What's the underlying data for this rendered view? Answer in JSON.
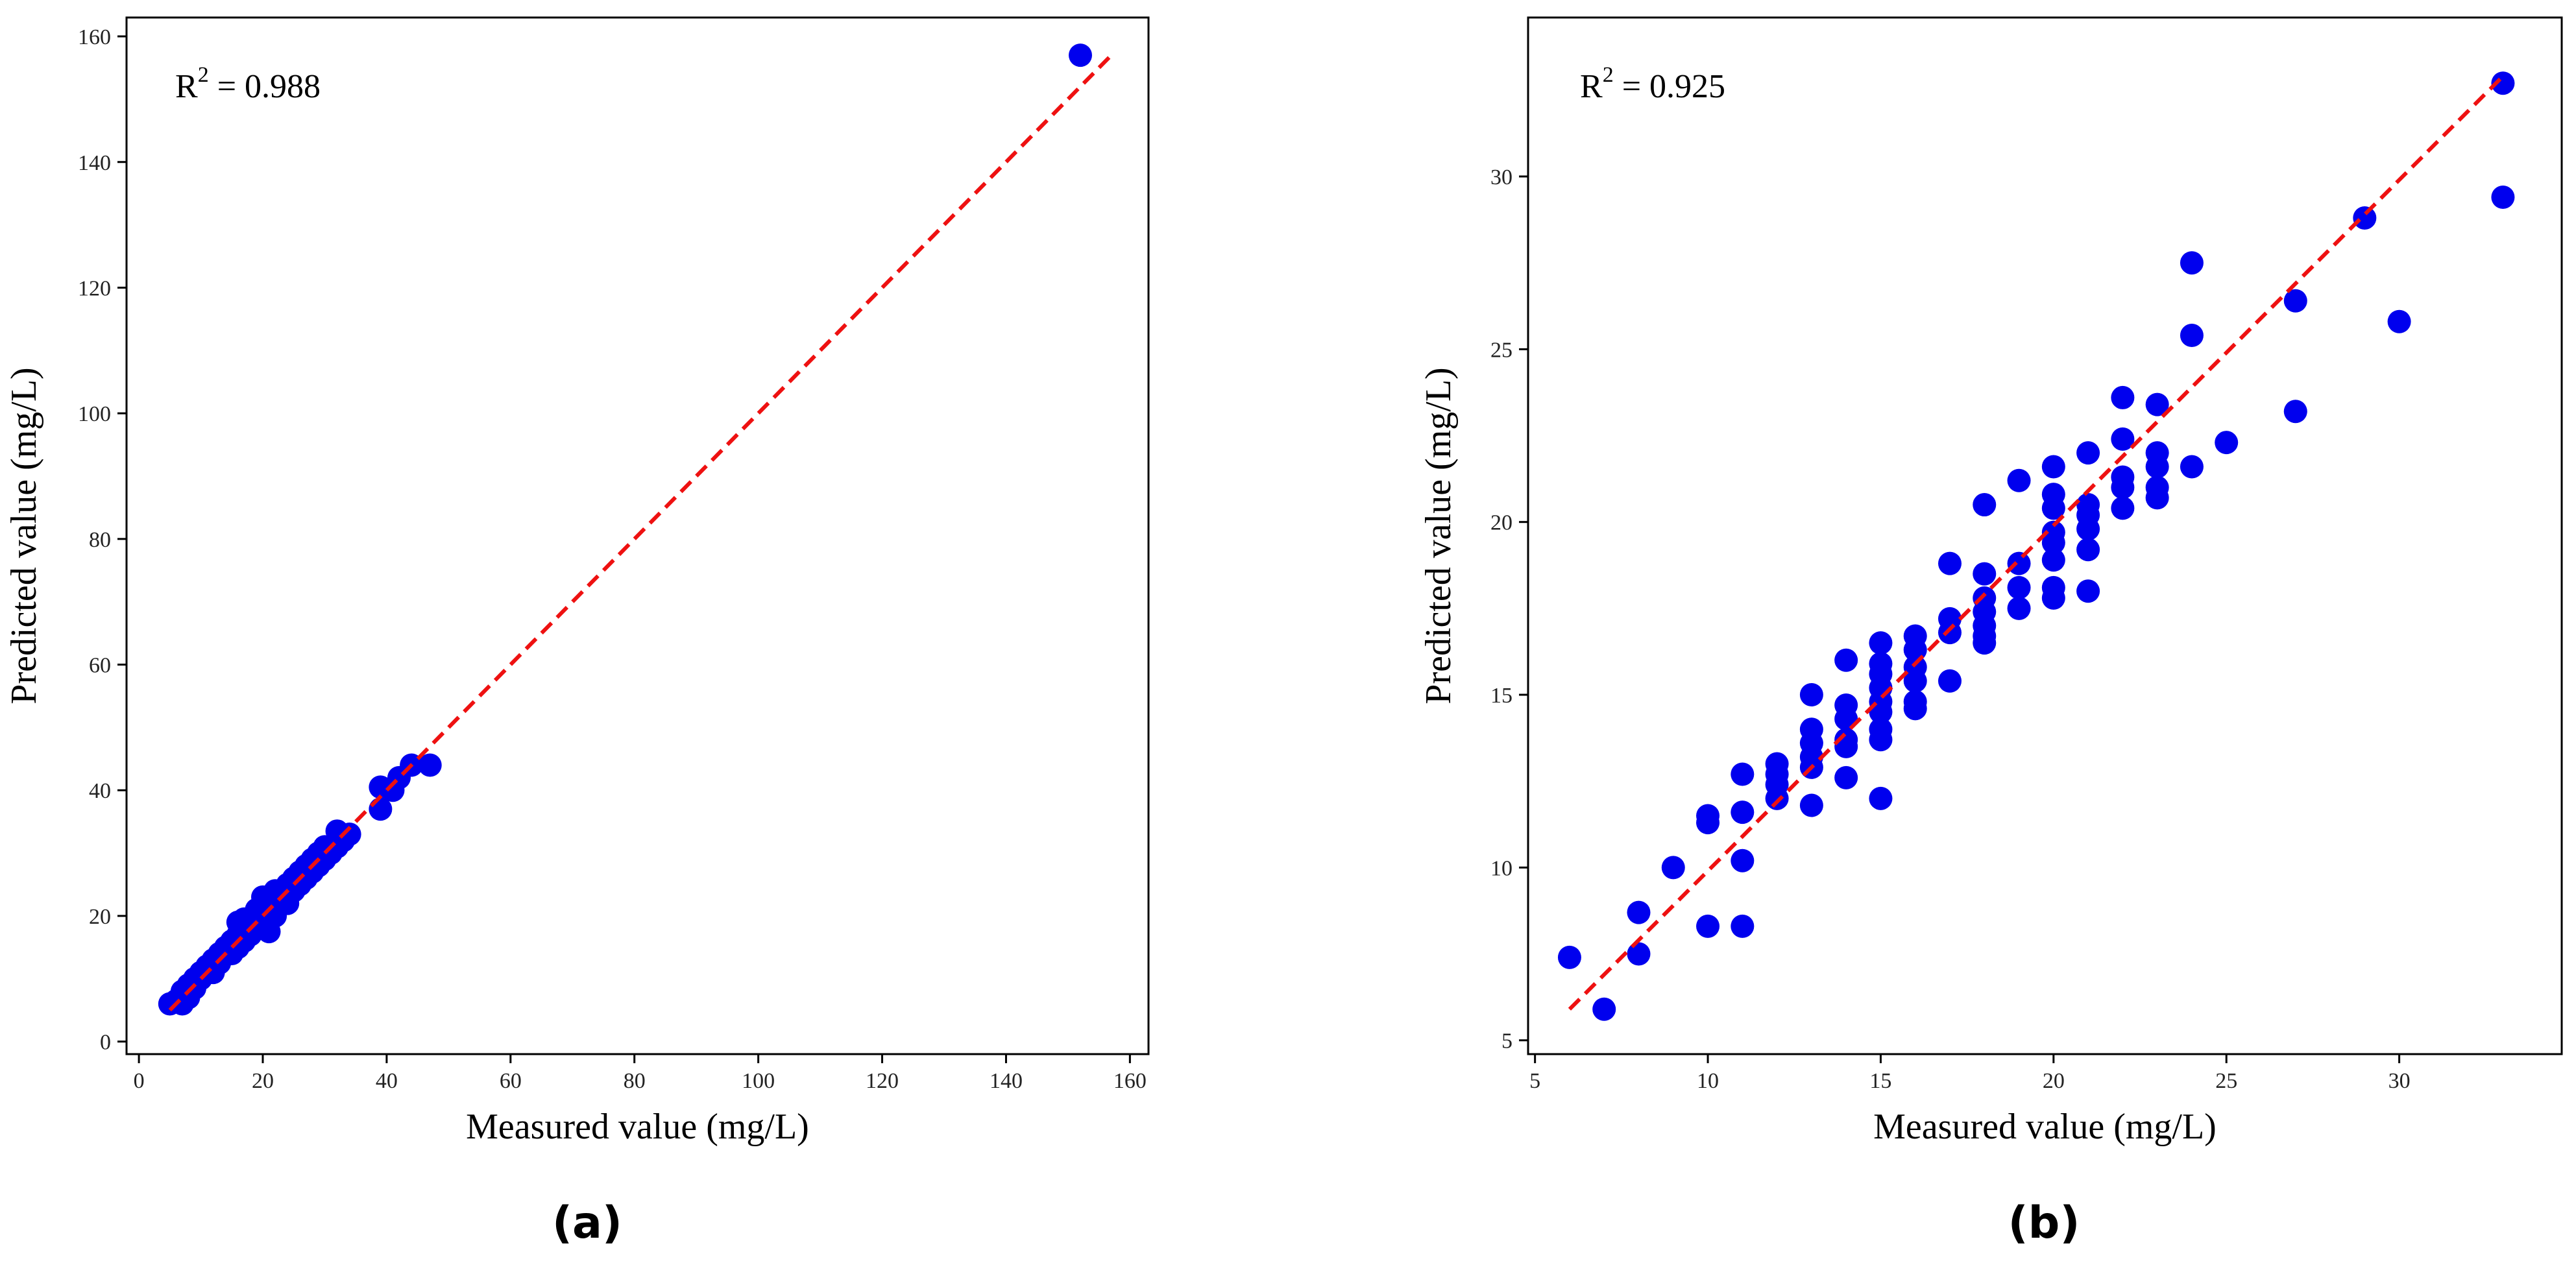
{
  "chart_data": [
    {
      "type": "scatter",
      "caption": "(a)",
      "xlabel": "Measured value (mg/L)",
      "ylabel": "Predicted value (mg/L)",
      "xlim": [
        -2,
        163
      ],
      "ylim": [
        -2,
        163
      ],
      "xticks": [
        0,
        20,
        40,
        60,
        80,
        100,
        120,
        140,
        160
      ],
      "yticks": [
        0,
        20,
        40,
        60,
        80,
        100,
        120,
        140,
        160
      ],
      "grid": false,
      "annotation": {
        "base": "R",
        "sup": "2",
        "rest": " = 0.988"
      },
      "point_color": "#0000ee",
      "fit_line": {
        "style": "dashed",
        "color": "#ee1111",
        "x": [
          5,
          157
        ],
        "y": [
          5,
          157
        ]
      },
      "points": [
        [
          5,
          6
        ],
        [
          6,
          6.5
        ],
        [
          7,
          6
        ],
        [
          7,
          8
        ],
        [
          8,
          7
        ],
        [
          8,
          9
        ],
        [
          9,
          8.5
        ],
        [
          9,
          10
        ],
        [
          10,
          10
        ],
        [
          10,
          11
        ],
        [
          11,
          11
        ],
        [
          11,
          12
        ],
        [
          12,
          11
        ],
        [
          12,
          13
        ],
        [
          13,
          12.5
        ],
        [
          13,
          14
        ],
        [
          14,
          14
        ],
        [
          14,
          15
        ],
        [
          15,
          14
        ],
        [
          15,
          16
        ],
        [
          16,
          15
        ],
        [
          16,
          17
        ],
        [
          16,
          19
        ],
        [
          17,
          16
        ],
        [
          17,
          18
        ],
        [
          17,
          19.5
        ],
        [
          18,
          17
        ],
        [
          18,
          19
        ],
        [
          19,
          18
        ],
        [
          19,
          20
        ],
        [
          19,
          21
        ],
        [
          20,
          19
        ],
        [
          20,
          21
        ],
        [
          20,
          23
        ],
        [
          21,
          20
        ],
        [
          21,
          22
        ],
        [
          21,
          23
        ],
        [
          21,
          17.5
        ],
        [
          22,
          20
        ],
        [
          22,
          22
        ],
        [
          22,
          24
        ],
        [
          23,
          22
        ],
        [
          23,
          23.5
        ],
        [
          24,
          22
        ],
        [
          24,
          25
        ],
        [
          25,
          24
        ],
        [
          25,
          26
        ],
        [
          26,
          25
        ],
        [
          26,
          27
        ],
        [
          27,
          26
        ],
        [
          27,
          28
        ],
        [
          28,
          27
        ],
        [
          28,
          29
        ],
        [
          29,
          28
        ],
        [
          29,
          30
        ],
        [
          30,
          29
        ],
        [
          30,
          31
        ],
        [
          31,
          30
        ],
        [
          32,
          31
        ],
        [
          32,
          33.5
        ],
        [
          33,
          32
        ],
        [
          34,
          33
        ],
        [
          39,
          37
        ],
        [
          39,
          40.5
        ],
        [
          41,
          40
        ],
        [
          42,
          42
        ],
        [
          44,
          44
        ],
        [
          47,
          44
        ],
        [
          152,
          157
        ]
      ]
    },
    {
      "type": "scatter",
      "caption": "(b)",
      "xlabel": "Measured value (mg/L)",
      "ylabel": "Predicted value (mg/L)",
      "xlim": [
        4.8,
        34.7
      ],
      "ylim": [
        4.6,
        34.6
      ],
      "xticks": [
        5,
        10,
        15,
        20,
        25,
        30
      ],
      "yticks": [
        5,
        10,
        15,
        20,
        25,
        30
      ],
      "grid": false,
      "annotation": {
        "base": "R",
        "sup": "2",
        "rest": " = 0.925"
      },
      "point_color": "#0000ee",
      "fit_line": {
        "style": "dashed",
        "color": "#ee1111",
        "x": [
          6,
          33
        ],
        "y": [
          5.9,
          32.9
        ]
      },
      "points": [
        [
          6,
          7.4
        ],
        [
          7,
          5.9
        ],
        [
          8,
          8.7
        ],
        [
          8,
          7.5
        ],
        [
          9,
          10
        ],
        [
          10,
          11.3
        ],
        [
          10,
          11.5
        ],
        [
          10,
          8.3
        ],
        [
          11,
          12.7
        ],
        [
          11,
          11.6
        ],
        [
          11,
          10.2
        ],
        [
          11,
          8.3
        ],
        [
          12,
          13
        ],
        [
          12,
          12.7
        ],
        [
          12,
          12.4
        ],
        [
          12,
          12
        ],
        [
          13,
          15
        ],
        [
          13,
          14
        ],
        [
          13,
          13.6
        ],
        [
          13,
          13.2
        ],
        [
          13,
          12.9
        ],
        [
          13,
          11.8
        ],
        [
          14,
          16
        ],
        [
          14,
          14.7
        ],
        [
          14,
          14.3
        ],
        [
          14,
          13.7
        ],
        [
          14,
          13.5
        ],
        [
          14,
          12.6
        ],
        [
          15,
          16.5
        ],
        [
          15,
          15.9
        ],
        [
          15,
          15.6
        ],
        [
          15,
          15.2
        ],
        [
          15,
          14.8
        ],
        [
          15,
          14.5
        ],
        [
          15,
          14
        ],
        [
          15,
          13.7
        ],
        [
          15,
          12
        ],
        [
          16,
          16.7
        ],
        [
          16,
          16.3
        ],
        [
          16,
          15.8
        ],
        [
          16,
          15.4
        ],
        [
          16,
          14.8
        ],
        [
          16,
          14.6
        ],
        [
          17,
          18.8
        ],
        [
          17,
          17.2
        ],
        [
          17,
          16.8
        ],
        [
          17,
          15.4
        ],
        [
          18,
          20.5
        ],
        [
          18,
          18.5
        ],
        [
          18,
          17.8
        ],
        [
          18,
          17.4
        ],
        [
          18,
          17
        ],
        [
          18,
          16.7
        ],
        [
          18,
          16.5
        ],
        [
          19,
          21.2
        ],
        [
          19,
          18.8
        ],
        [
          19,
          18.1
        ],
        [
          19,
          17.5
        ],
        [
          20,
          21.6
        ],
        [
          20,
          20.8
        ],
        [
          20,
          20.4
        ],
        [
          20,
          19.7
        ],
        [
          20,
          19.4
        ],
        [
          20,
          18.9
        ],
        [
          20,
          18.1
        ],
        [
          20,
          17.8
        ],
        [
          21,
          22
        ],
        [
          21,
          20.5
        ],
        [
          21,
          20.2
        ],
        [
          21,
          19.8
        ],
        [
          21,
          19.2
        ],
        [
          21,
          18
        ],
        [
          22,
          23.6
        ],
        [
          22,
          22.4
        ],
        [
          22,
          21.3
        ],
        [
          22,
          21
        ],
        [
          22,
          20.4
        ],
        [
          23,
          23.4
        ],
        [
          23,
          22
        ],
        [
          23,
          21.6
        ],
        [
          23,
          21
        ],
        [
          23,
          20.7
        ],
        [
          24,
          27.5
        ],
        [
          24,
          25.4
        ],
        [
          24,
          21.6
        ],
        [
          25,
          22.3
        ],
        [
          27,
          26.4
        ],
        [
          27,
          23.2
        ],
        [
          29,
          28.8
        ],
        [
          30,
          25.8
        ],
        [
          33,
          32.7
        ],
        [
          33,
          29.4
        ]
      ]
    }
  ]
}
